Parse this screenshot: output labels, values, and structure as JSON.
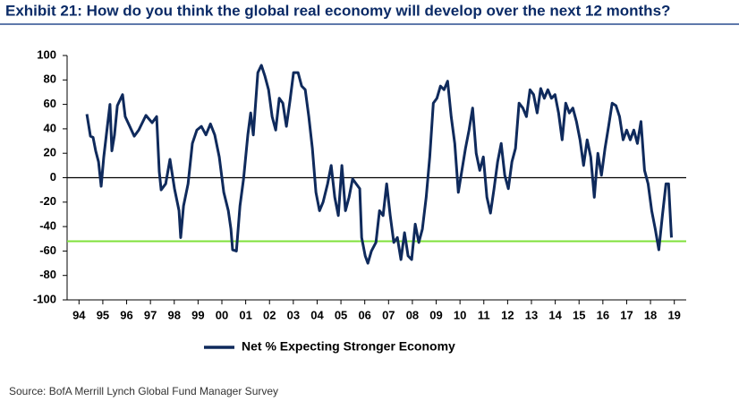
{
  "chart_data": {
    "type": "line",
    "title": "Exhibit 21: How do you think the global real economy will develop over the next 12 months?",
    "source": "Source:  BofA Merrill Lynch Global Fund Manager Survey",
    "x": [
      1994.83,
      1994.98,
      1995.09,
      1995.2,
      1995.32,
      1995.43,
      1995.54,
      1995.69,
      1995.8,
      1995.88,
      1995.99,
      1996.11,
      1996.33,
      1996.44,
      1996.63,
      1996.82,
      1997.01,
      1997.31,
      1997.57,
      1997.76,
      1997.87,
      1997.95,
      1998.14,
      1998.32,
      1998.51,
      1998.7,
      1998.77,
      1998.89,
      1999.08,
      1999.26,
      1999.45,
      1999.64,
      1999.83,
      2000.02,
      2000.2,
      2000.39,
      2000.58,
      2000.77,
      2000.88,
      2000.95,
      2001.11,
      2001.26,
      2001.41,
      2001.59,
      2001.71,
      2001.82,
      2002.01,
      2002.16,
      2002.31,
      2002.46,
      2002.61,
      2002.76,
      2002.91,
      2003.06,
      2003.21,
      2003.36,
      2003.51,
      2003.7,
      2003.85,
      2004.0,
      2004.15,
      2004.3,
      2004.45,
      2004.6,
      2004.75,
      2004.94,
      2005.09,
      2005.24,
      2005.39,
      2005.54,
      2005.69,
      2005.84,
      2005.99,
      2006.14,
      2006.29,
      2006.37,
      2006.52,
      2006.63,
      2006.78,
      2006.97,
      2007.12,
      2007.27,
      2007.42,
      2007.57,
      2007.72,
      2007.87,
      2008.02,
      2008.17,
      2008.32,
      2008.47,
      2008.62,
      2008.77,
      2008.92,
      2009.08,
      2009.23,
      2009.38,
      2009.53,
      2009.68,
      2009.83,
      2009.98,
      2010.13,
      2010.28,
      2010.43,
      2010.58,
      2010.73,
      2010.88,
      2011.03,
      2011.18,
      2011.33,
      2011.48,
      2011.63,
      2011.78,
      2011.93,
      2012.08,
      2012.23,
      2012.38,
      2012.53,
      2012.68,
      2012.83,
      2012.98,
      2013.14,
      2013.29,
      2013.44,
      2013.59,
      2013.74,
      2013.89,
      2014.04,
      2014.19,
      2014.34,
      2014.49,
      2014.64,
      2014.79,
      2014.94,
      2015.09,
      2015.24,
      2015.39,
      2015.54,
      2015.69,
      2015.84,
      2015.99,
      2016.14,
      2016.29,
      2016.44,
      2016.59,
      2016.74,
      2016.89,
      2017.05,
      2017.2,
      2017.35,
      2017.5,
      2017.65,
      2017.8,
      2017.95,
      2018.1,
      2018.25,
      2018.4,
      2018.55,
      2018.7,
      2018.85,
      2019.0,
      2019.15,
      2019.26,
      2019.38
    ],
    "series": [
      {
        "name": "Net % Expecting Stronger Economy",
        "color": "#0f2a5c",
        "values": [
          52,
          34,
          33,
          22,
          13,
          -7,
          17,
          42,
          60,
          22,
          35,
          59,
          68,
          50,
          42,
          34,
          39,
          51,
          45,
          50,
          5,
          -10,
          -5,
          15,
          -9,
          -27,
          -49,
          -23,
          -5,
          28,
          39,
          42,
          35,
          44,
          35,
          17,
          -12,
          -27,
          -42,
          -59,
          -60,
          -23,
          -1,
          35,
          53,
          35,
          86,
          92,
          83,
          72,
          50,
          39,
          65,
          61,
          42,
          63,
          86,
          86,
          75,
          72,
          50,
          24,
          -12,
          -27,
          -20,
          -5,
          10,
          -16,
          -31,
          10,
          -27,
          -16,
          -1,
          -5,
          -9,
          -49,
          -64,
          -70,
          -60,
          -53,
          -27,
          -31,
          -5,
          -31,
          -53,
          -49,
          -67,
          -45,
          -64,
          -67,
          -38,
          -53,
          -42,
          -16,
          17,
          61,
          65,
          75,
          72,
          79,
          50,
          28,
          -12,
          6,
          24,
          39,
          57,
          20,
          6,
          17,
          -16,
          -29,
          -9,
          13,
          28,
          2,
          -9,
          13,
          24,
          61,
          57,
          50,
          72,
          68,
          53,
          73,
          65,
          72,
          65,
          68,
          53,
          31,
          61,
          53,
          57,
          46,
          31,
          10,
          31,
          17,
          -16,
          20,
          2,
          24,
          42,
          61,
          59,
          50,
          31,
          39,
          31,
          39,
          28,
          46,
          6,
          -5,
          -27,
          -42,
          -59,
          -31,
          -5,
          -5,
          -49
        ]
      }
    ],
    "reference_line": {
      "value": -52,
      "color": "#7fe03a"
    },
    "xlim": [
      1994,
      2020
    ],
    "xticks": [
      {
        "value": 1994.5,
        "label": "94"
      },
      {
        "value": 1995.5,
        "label": "95"
      },
      {
        "value": 1996.5,
        "label": "96"
      },
      {
        "value": 1997.5,
        "label": "97"
      },
      {
        "value": 1998.5,
        "label": "98"
      },
      {
        "value": 1999.5,
        "label": "99"
      },
      {
        "value": 2000.5,
        "label": "00"
      },
      {
        "value": 2001.5,
        "label": "01"
      },
      {
        "value": 2002.5,
        "label": "02"
      },
      {
        "value": 2003.5,
        "label": "03"
      },
      {
        "value": 2004.5,
        "label": "04"
      },
      {
        "value": 2005.5,
        "label": "05"
      },
      {
        "value": 2006.5,
        "label": "06"
      },
      {
        "value": 2007.5,
        "label": "07"
      },
      {
        "value": 2008.5,
        "label": "08"
      },
      {
        "value": 2009.5,
        "label": "09"
      },
      {
        "value": 2010.5,
        "label": "10"
      },
      {
        "value": 2011.5,
        "label": "11"
      },
      {
        "value": 2012.5,
        "label": "12"
      },
      {
        "value": 2013.5,
        "label": "13"
      },
      {
        "value": 2014.5,
        "label": "14"
      },
      {
        "value": 2015.5,
        "label": "15"
      },
      {
        "value": 2016.5,
        "label": "16"
      },
      {
        "value": 2017.5,
        "label": "17"
      },
      {
        "value": 2018.5,
        "label": "18"
      },
      {
        "value": 2019.5,
        "label": "19"
      }
    ],
    "ylim": [
      -100,
      100
    ],
    "yticks": [
      -100,
      -80,
      -60,
      -40,
      -20,
      0,
      20,
      40,
      60,
      80,
      100
    ]
  }
}
